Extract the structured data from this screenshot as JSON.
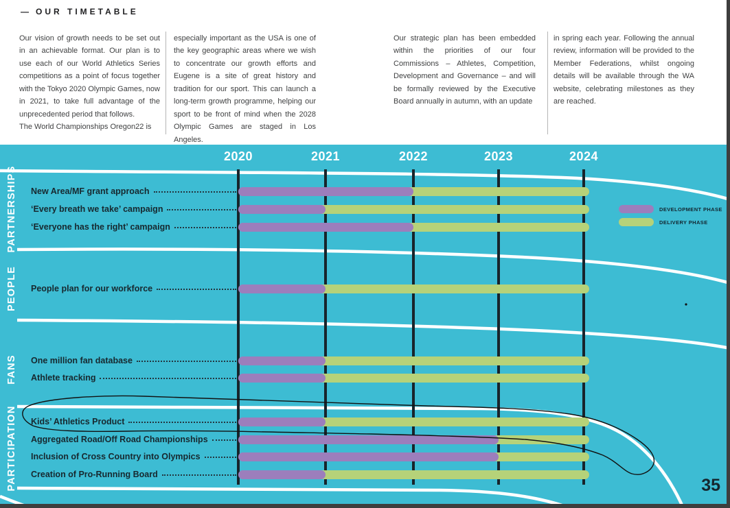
{
  "page": {
    "number": "35"
  },
  "header": {
    "dash": "—",
    "title": "OUR TIMETABLE"
  },
  "intro": {
    "columns": [
      {
        "paragraphs": [
          "Our vision of growth needs to be set out in an achievable format. Our plan is to use each of our World Athletics Series competitions as a point of focus together with the Tokyo 2020 Olympic Games, now in 2021, to take full advantage of the unprecedented period that follows.",
          "The World Championships Oregon22 is"
        ]
      },
      {
        "paragraphs": [
          "especially important as the USA is one of the key geographic areas where we wish to concentrate our growth efforts and Eugene is a site of great history and tradition for our sport. This can launch a long-term growth programme, helping our sport to be front of mind when the 2028 Olympic Games are staged in Los Angeles."
        ]
      },
      {
        "paragraphs": [
          "Our strategic plan has been embedded within the priorities of our four Commissions – Athletes, Competition, Development and Governance – and will be formally reviewed by the Executive Board annually in autumn, with an update"
        ]
      },
      {
        "paragraphs": [
          "in spring each year. Following the annual review, information will be provided to the Member Federations, whilst ongoing details will be available through the WA website, celebrating milestones as they are reached."
        ]
      }
    ]
  },
  "chart_data": {
    "type": "gantt",
    "x_labels": [
      "2020",
      "2021",
      "2022",
      "2023",
      "2024"
    ],
    "colors": {
      "background": "#3DBCD3",
      "development": "#9C7EBC",
      "delivery": "#B6D279",
      "gridline": "#18242B"
    },
    "legend": [
      {
        "label": "DEVELOPMENT PHASE",
        "key": "development",
        "color": "#9C7EBC"
      },
      {
        "label": "DELIVERY PHASE",
        "key": "delivery",
        "color": "#B6D279"
      }
    ],
    "sections": [
      {
        "name": "PARTNERSHIPS",
        "rows": [
          {
            "label": "New Area/MF grant approach",
            "development": [
              2020,
              2022
            ],
            "delivery": [
              2022,
              2024
            ]
          },
          {
            "label": "‘Every breath we take’ campaign",
            "development": [
              2020,
              2021
            ],
            "delivery": [
              2021,
              2024
            ]
          },
          {
            "label": "‘Everyone has the right’ campaign",
            "development": [
              2020,
              2022
            ],
            "delivery": [
              2022,
              2024
            ]
          }
        ]
      },
      {
        "name": "PEOPLE",
        "rows": [
          {
            "label": "People plan for our workforce",
            "development": [
              2020,
              2021
            ],
            "delivery": [
              2021,
              2024
            ]
          }
        ]
      },
      {
        "name": "FANS",
        "rows": [
          {
            "label": "One million fan database",
            "development": [
              2020,
              2021
            ],
            "delivery": [
              2021,
              2024
            ]
          },
          {
            "label": "Athlete tracking",
            "development": [
              2020,
              2021
            ],
            "delivery": [
              2021,
              2024
            ]
          }
        ]
      },
      {
        "name": "PARTICIPATION",
        "rows": [
          {
            "label": "Kids’ Athletics Product",
            "development": [
              2020,
              2021
            ],
            "delivery": [
              2021,
              2024
            ],
            "annotated": true
          },
          {
            "label": "Aggregated Road/Off Road Championships",
            "development": [
              2020,
              2023
            ],
            "delivery": [
              2023,
              2024
            ]
          },
          {
            "label": "Inclusion of Cross Country into Olympics",
            "development": [
              2020,
              2023
            ],
            "delivery": [
              2023,
              2024
            ]
          },
          {
            "label": "Creation of Pro-Running Board",
            "development": [
              2020,
              2021
            ],
            "delivery": [
              2021,
              2024
            ]
          }
        ]
      }
    ],
    "annotation": "hand-drawn ink circle around the Kids’ Athletics Product row"
  }
}
